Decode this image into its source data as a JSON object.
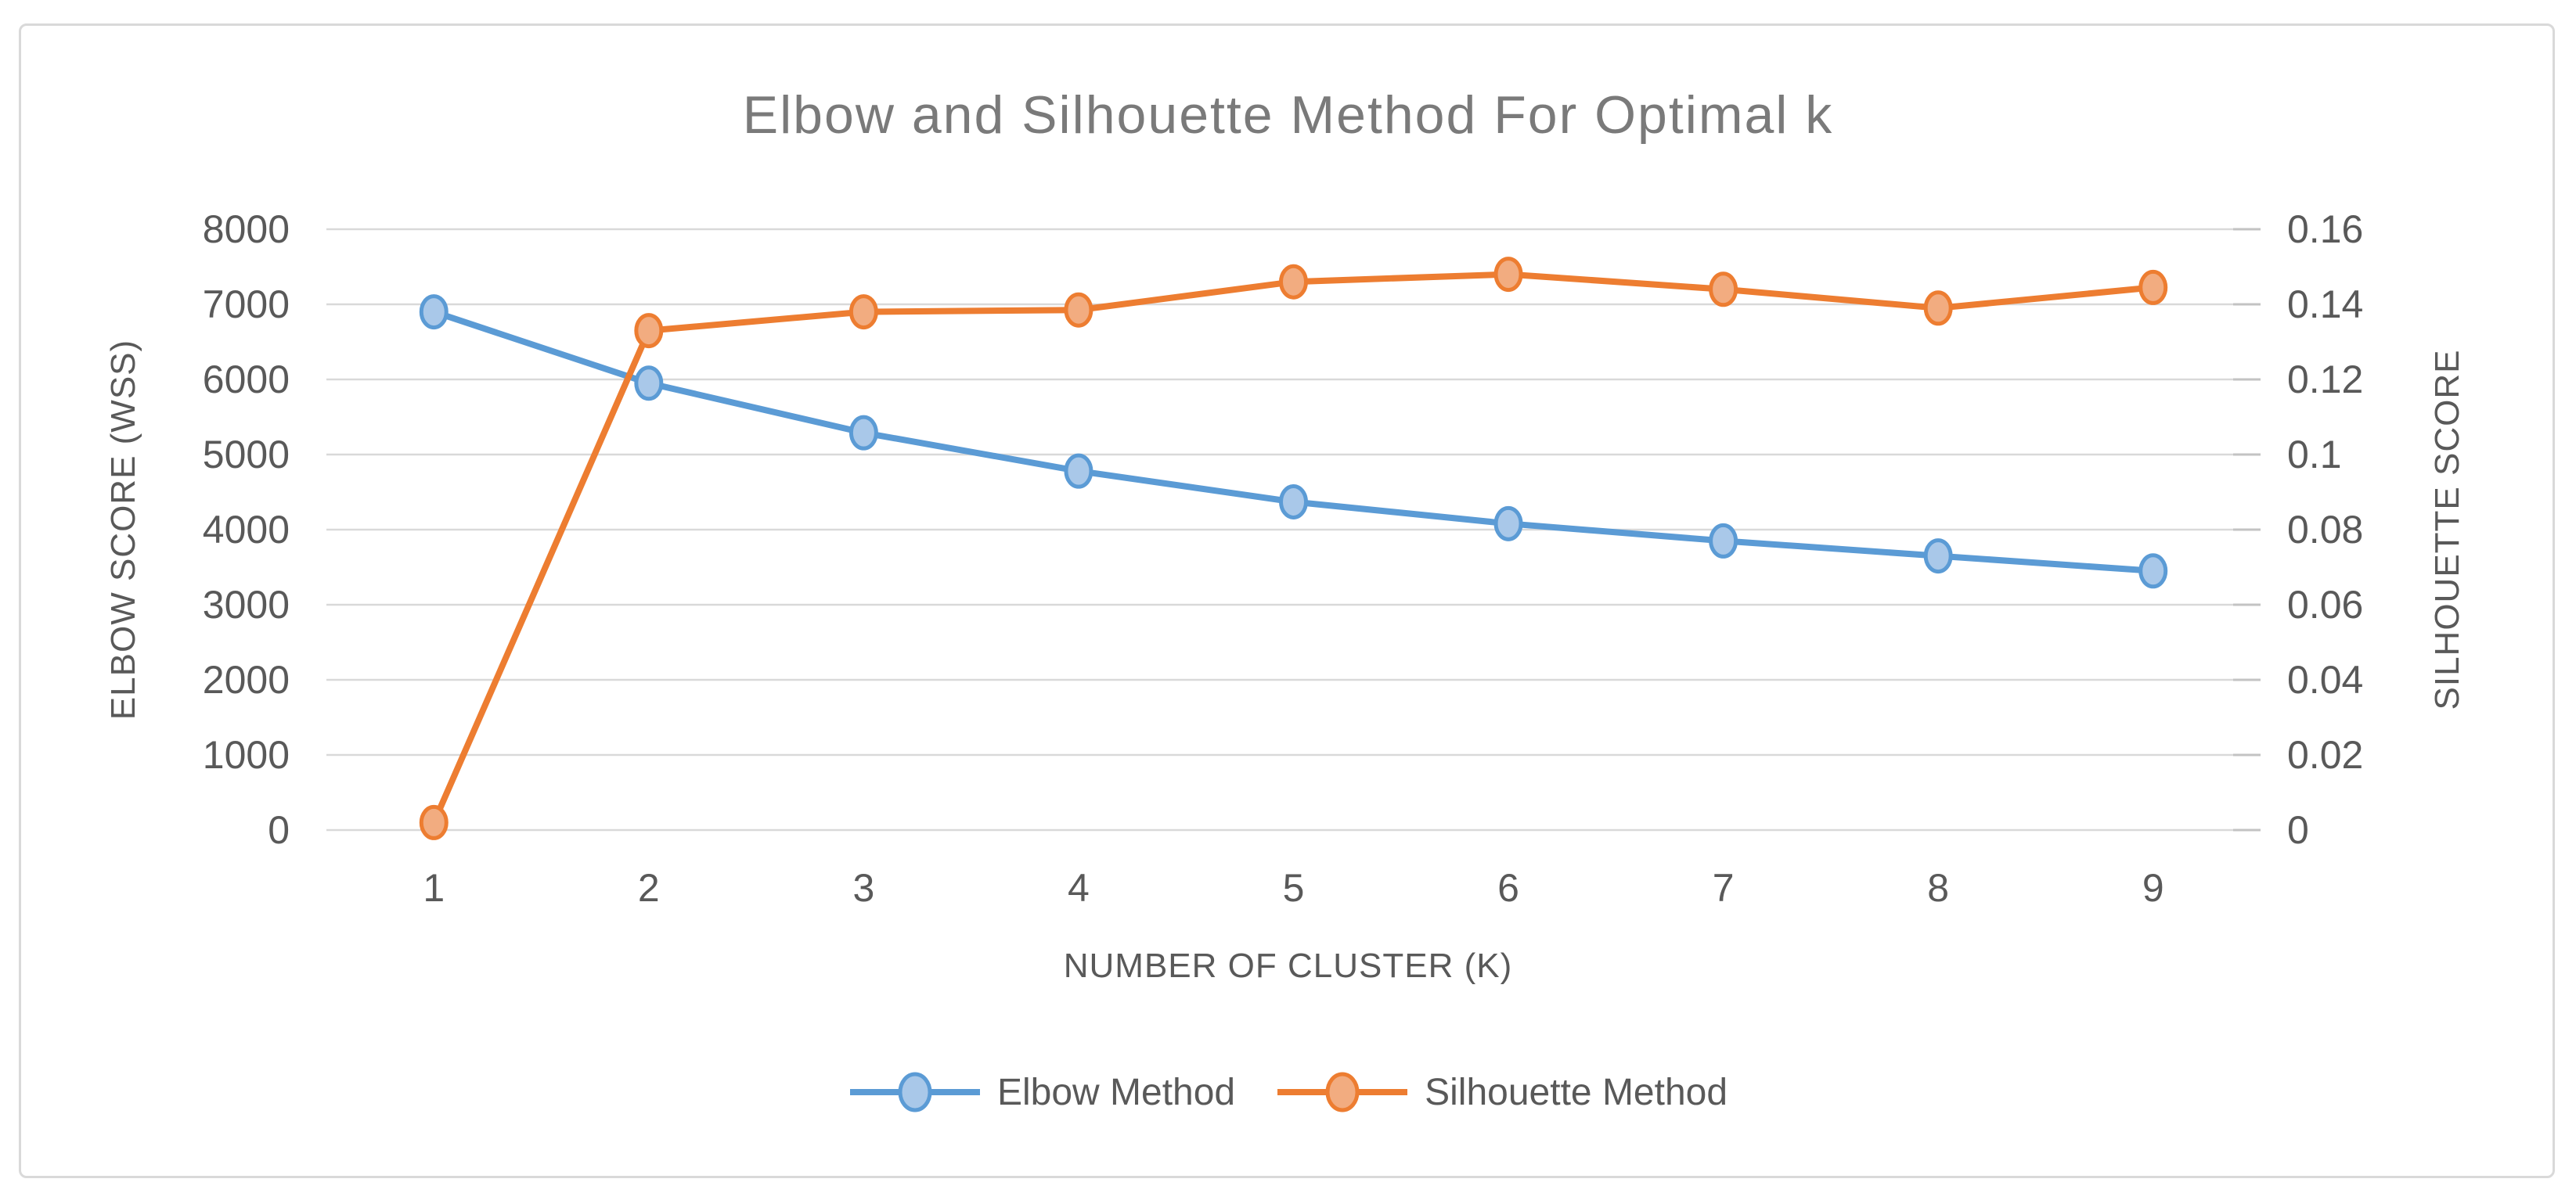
{
  "chart_data": {
    "type": "line",
    "title": "Elbow and Silhouette Method For Optimal k",
    "xlabel": "NUMBER OF CLUSTER (K)",
    "ylabel_left": "ELBOW SCORE (WSS)",
    "ylabel_right": "SILHOUETTE SCORE",
    "categories": [
      1,
      2,
      3,
      4,
      5,
      6,
      7,
      8,
      9
    ],
    "left_axis": {
      "min": 0,
      "max": 8000,
      "tick_labels_top_down": [
        "8000",
        "7000",
        "6000",
        "5000",
        "4000",
        "3000",
        "2000",
        "1000",
        "0"
      ]
    },
    "right_axis": {
      "min": 0,
      "max": 0.16,
      "tick_labels_top_down": [
        "0.16",
        "0.14",
        "0.12",
        "0.1",
        "0.08",
        "0.06",
        "0.04",
        "0.02",
        "0"
      ]
    },
    "series": [
      {
        "name": "Elbow Method",
        "axis": "left",
        "color": "#5B9BD5",
        "marker_fill": "#A9C8E9",
        "values": [
          6900,
          5950,
          5290,
          4780,
          4370,
          4080,
          3850,
          3650,
          3450
        ]
      },
      {
        "name": "Silhouette Method",
        "axis": "right",
        "color": "#ED7D31",
        "marker_fill": "#F2AC80",
        "values": [
          0.002,
          0.133,
          0.138,
          0.1385,
          0.146,
          0.148,
          0.144,
          0.139,
          0.1445
        ]
      }
    ],
    "grid": true,
    "gridline_color": "#D9D9D9",
    "tick_mark_color": "#C3C3C3",
    "text_color": "#595959",
    "title_color": "#7A7A7A",
    "legend_position": "bottom"
  }
}
